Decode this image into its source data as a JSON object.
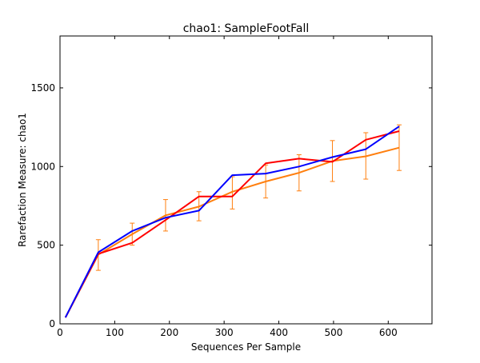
{
  "chart_data": {
    "type": "line",
    "title": "chao1: SampleFootFall",
    "xlabel": "Sequences Per Sample",
    "ylabel": "Rarefaction Measure: chao1",
    "xlim": [
      0,
      680
    ],
    "ylim": [
      0,
      1830
    ],
    "x_ticks": [
      0,
      100,
      200,
      300,
      400,
      500,
      600
    ],
    "y_ticks": [
      0,
      500,
      1000,
      1500
    ],
    "grid": false,
    "legend": "none",
    "series": [
      {
        "color": "#ff0000",
        "x": [
          10,
          70,
          132,
          193,
          254,
          315,
          376,
          437,
          498,
          559,
          620
        ],
        "y": [
          40,
          445,
          515,
          660,
          810,
          810,
          1020,
          1050,
          1030,
          1170,
          1225
        ]
      },
      {
        "color": "#0000ff",
        "x": [
          10,
          70,
          132,
          193,
          254,
          315,
          376,
          437,
          498,
          559,
          620
        ],
        "y": [
          40,
          455,
          590,
          675,
          720,
          945,
          955,
          1000,
          1060,
          1110,
          1255
        ]
      },
      {
        "color": "#ff7f0e",
        "x": [
          10,
          70,
          132,
          193,
          254,
          315,
          376,
          437,
          498,
          559,
          620
        ],
        "y": [
          40,
          440,
          570,
          690,
          745,
          840,
          905,
          960,
          1035,
          1065,
          1120
        ],
        "yerr_low": [
          40,
          340,
          500,
          590,
          655,
          730,
          800,
          845,
          905,
          920,
          975
        ],
        "yerr_high": [
          40,
          535,
          640,
          790,
          840,
          935,
          1010,
          1075,
          1165,
          1215,
          1265
        ]
      }
    ]
  }
}
